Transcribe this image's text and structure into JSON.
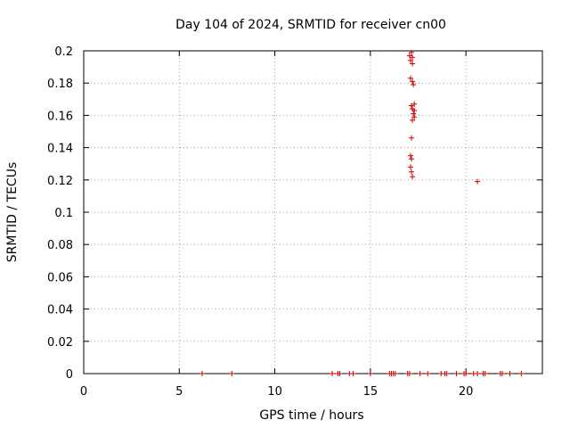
{
  "chart_data": {
    "type": "scatter",
    "title": "Day 104 of 2024, SRMTID for receiver cn00",
    "xlabel": "GPS time / hours",
    "ylabel": "SRMTID / TECUs",
    "xlim": [
      0,
      24
    ],
    "ylim": [
      0,
      0.2
    ],
    "xticks": [
      0,
      5,
      10,
      15,
      20
    ],
    "yticks": [
      0,
      0.02,
      0.04,
      0.06,
      0.08,
      0.1,
      0.12,
      0.14,
      0.16,
      0.18,
      0.2
    ],
    "grid": true,
    "marker": "+",
    "color": "#cc0000",
    "series": [
      {
        "name": "SRMTID",
        "points": [
          [
            6.2,
            0
          ],
          [
            7.75,
            0
          ],
          [
            13.0,
            0
          ],
          [
            13.3,
            0
          ],
          [
            13.4,
            0
          ],
          [
            13.9,
            0
          ],
          [
            14.1,
            0
          ],
          [
            15.0,
            0
          ],
          [
            16.0,
            0
          ],
          [
            16.1,
            0
          ],
          [
            16.2,
            0
          ],
          [
            16.3,
            0
          ],
          [
            16.95,
            0
          ],
          [
            17.05,
            0
          ],
          [
            17.6,
            0
          ],
          [
            18.0,
            0
          ],
          [
            18.7,
            0
          ],
          [
            18.9,
            0
          ],
          [
            19.0,
            0
          ],
          [
            19.5,
            0
          ],
          [
            19.9,
            0
          ],
          [
            20.0,
            0
          ],
          [
            20.4,
            0
          ],
          [
            20.6,
            0
          ],
          [
            20.9,
            0
          ],
          [
            21.0,
            0
          ],
          [
            21.8,
            0
          ],
          [
            21.9,
            0
          ],
          [
            22.3,
            0
          ],
          [
            22.9,
            0
          ],
          [
            17.05,
            0.197
          ],
          [
            17.15,
            0.199
          ],
          [
            17.2,
            0.196
          ],
          [
            17.1,
            0.194
          ],
          [
            17.2,
            0.192
          ],
          [
            17.1,
            0.183
          ],
          [
            17.2,
            0.181
          ],
          [
            17.25,
            0.179
          ],
          [
            17.15,
            0.166
          ],
          [
            17.3,
            0.167
          ],
          [
            17.2,
            0.164
          ],
          [
            17.3,
            0.163
          ],
          [
            17.25,
            0.161
          ],
          [
            17.3,
            0.159
          ],
          [
            17.2,
            0.157
          ],
          [
            17.15,
            0.146
          ],
          [
            17.1,
            0.135
          ],
          [
            17.15,
            0.133
          ],
          [
            17.1,
            0.128
          ],
          [
            17.15,
            0.125
          ],
          [
            17.2,
            0.122
          ],
          [
            20.6,
            0.119
          ]
        ]
      }
    ]
  }
}
